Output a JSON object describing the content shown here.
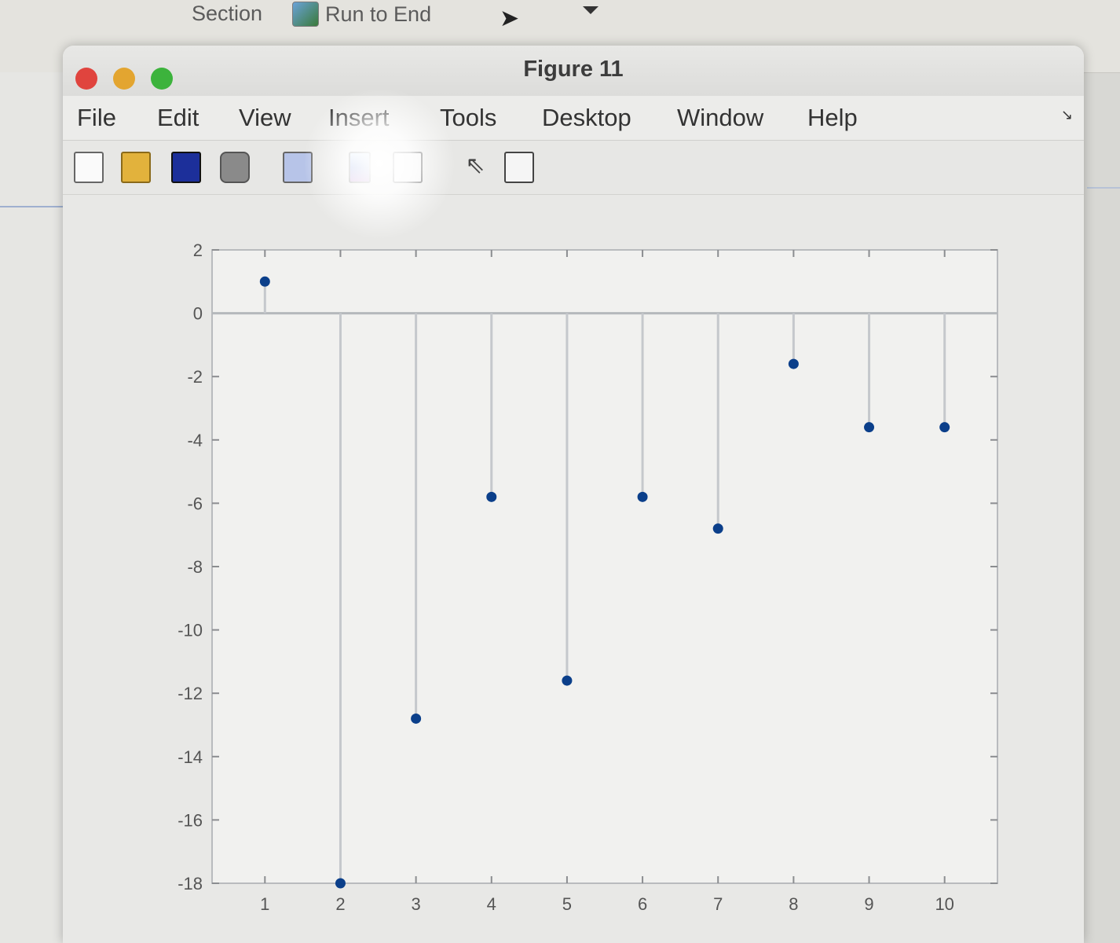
{
  "background": {
    "toolbar_items": [
      "Section",
      "Run to End"
    ]
  },
  "window": {
    "title": "Figure 11",
    "menu": [
      "File",
      "Edit",
      "View",
      "Insert",
      "Tools",
      "Desktop",
      "Window",
      "Help"
    ],
    "toolbar_icons": [
      "new-file-icon",
      "open-folder-icon",
      "save-icon",
      "print-icon",
      "link-plot-icon",
      "colorbar-icon",
      "legend-icon",
      "pointer-icon",
      "property-inspector-icon"
    ]
  },
  "chart_data": {
    "type": "stem",
    "title": "",
    "xlabel": "",
    "ylabel": "",
    "x": [
      1,
      2,
      3,
      4,
      5,
      6,
      7,
      8,
      9,
      10
    ],
    "values": [
      1,
      -18,
      -12.8,
      -5.8,
      -11.6,
      -5.8,
      -6.8,
      -1.6,
      -3.6,
      -3.6
    ],
    "xlim": [
      0.3,
      10.7
    ],
    "ylim": [
      -18,
      2
    ],
    "xticks": [
      1,
      2,
      3,
      4,
      5,
      6,
      7,
      8,
      9,
      10
    ],
    "yticks": [
      2,
      0,
      -2,
      -4,
      -6,
      -8,
      -10,
      -12,
      -14,
      -16,
      -18
    ],
    "marker_color": "#0b3f8a",
    "stem_color": "#c5c8cc",
    "grid": false
  }
}
